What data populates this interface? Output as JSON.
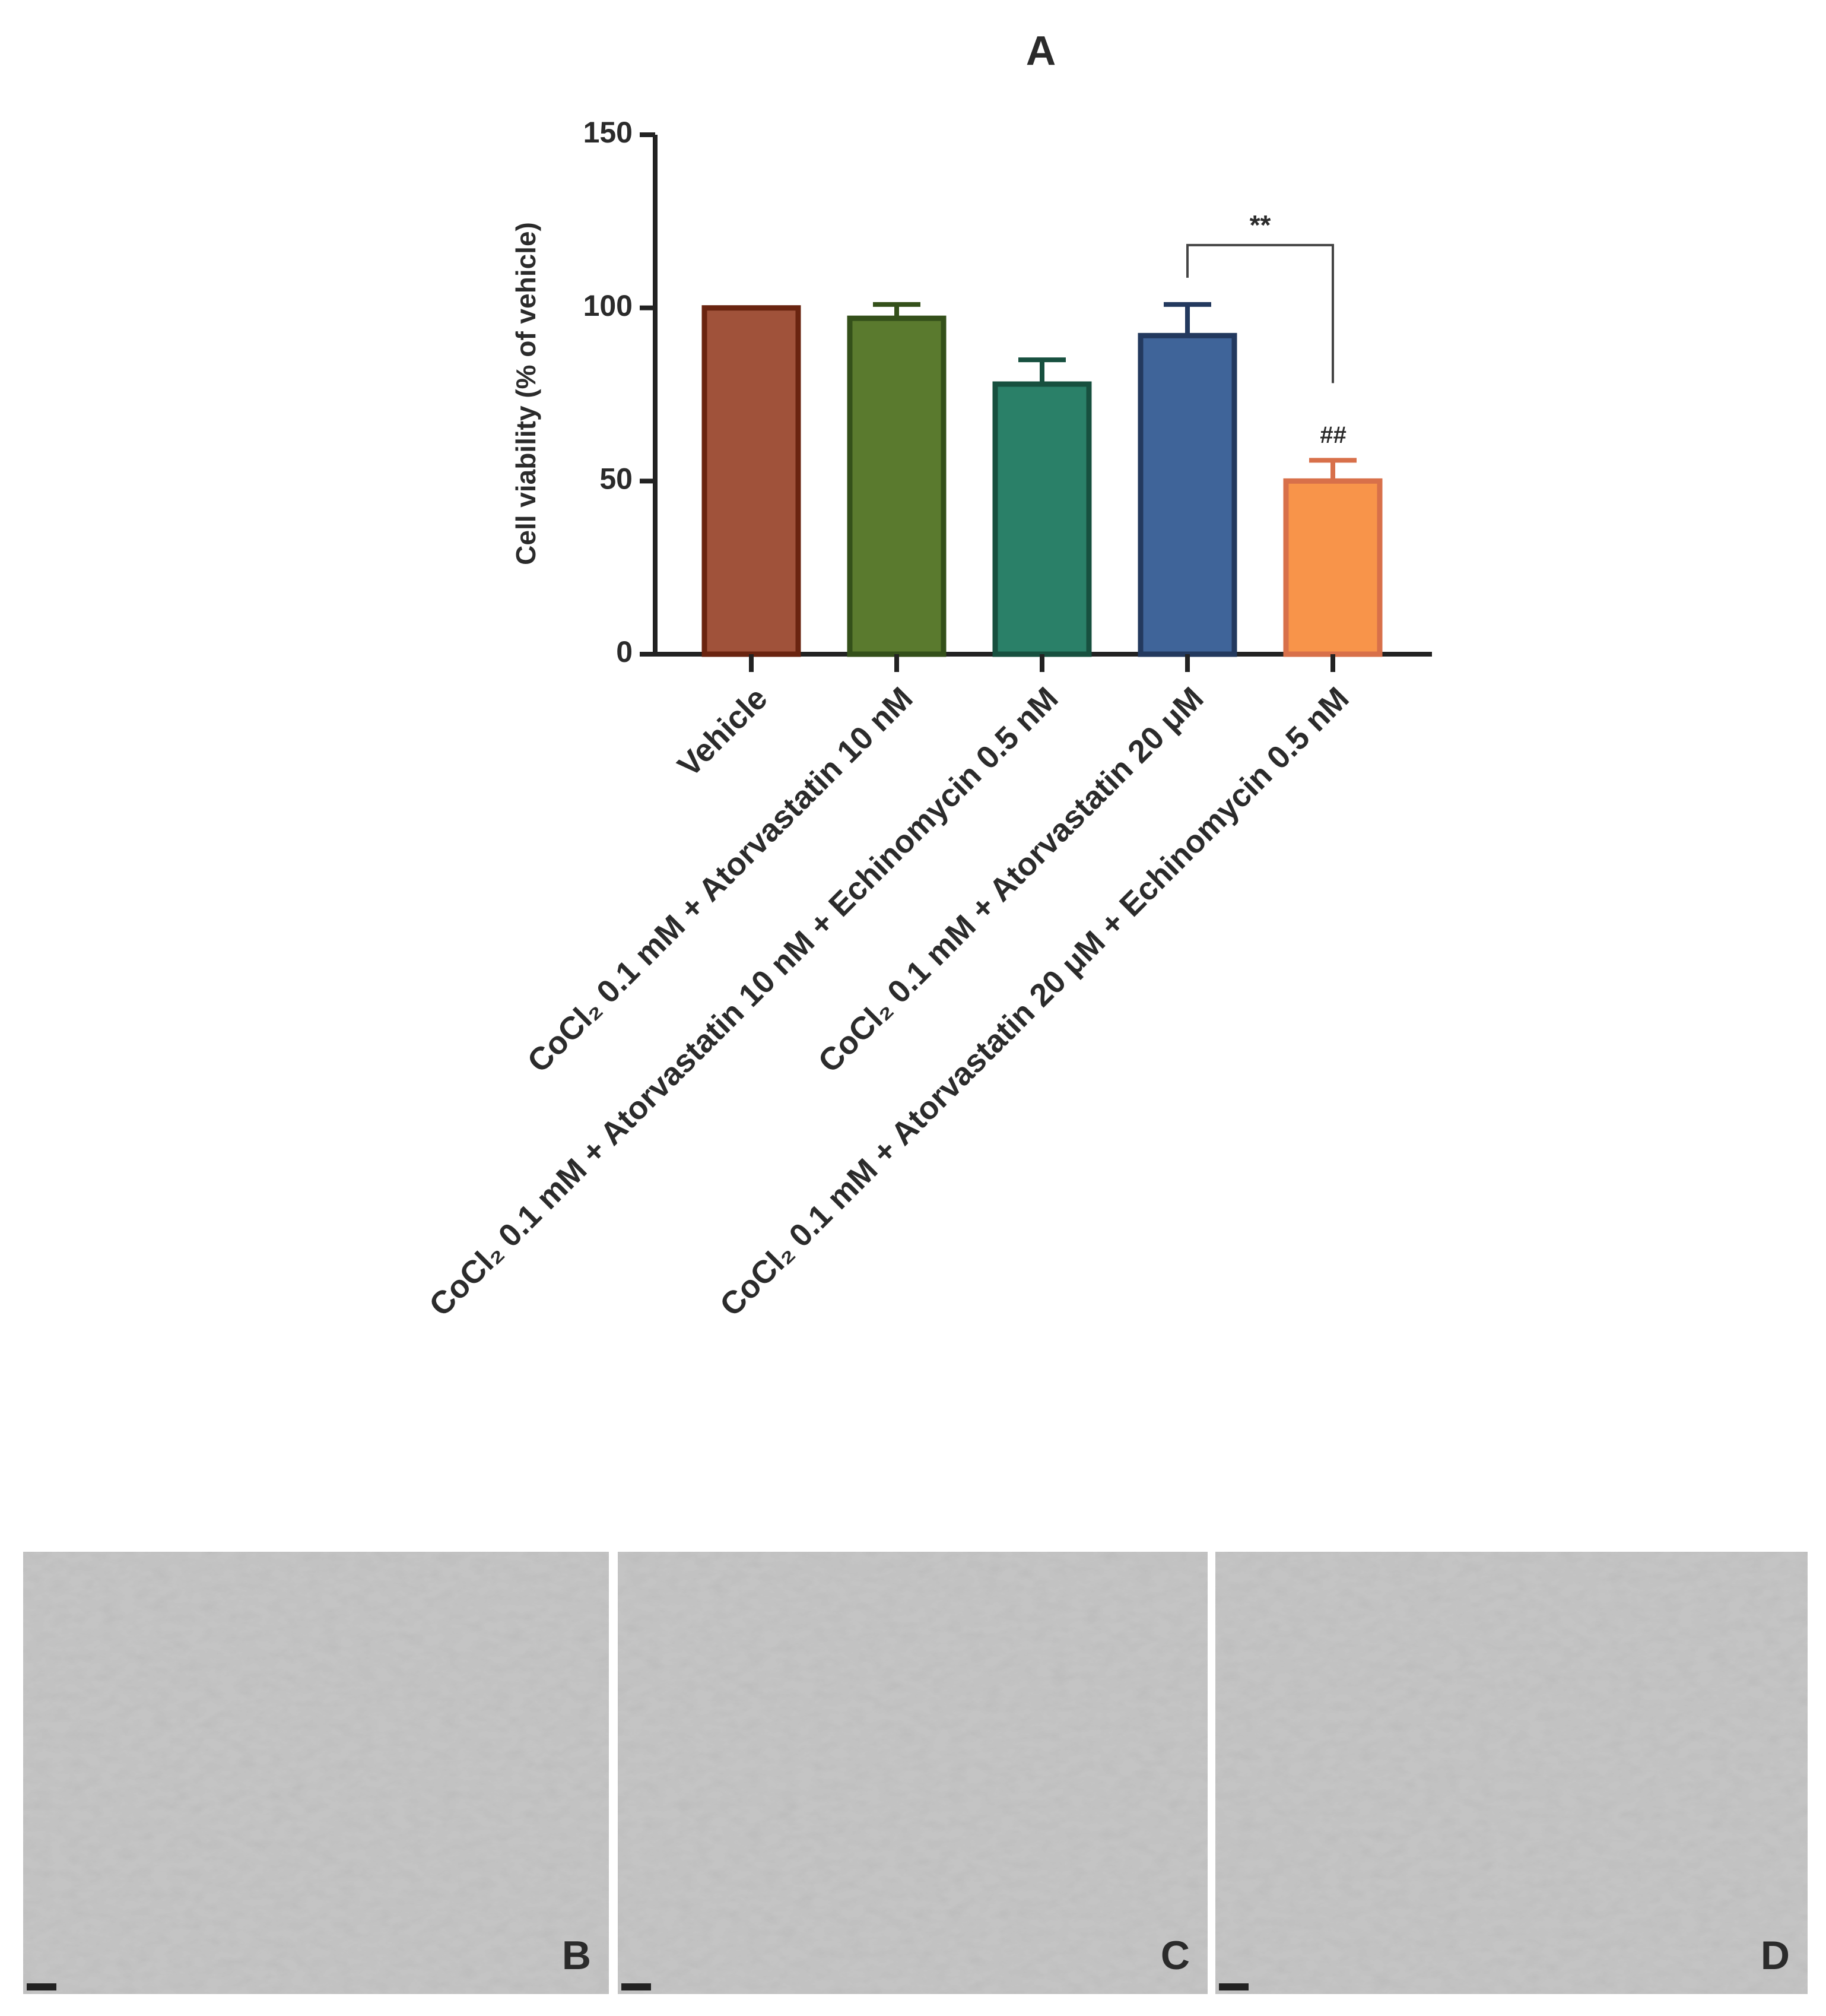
{
  "chart_data": {
    "type": "bar",
    "title": "A",
    "y_label": "Cell viability (% of vehicle)",
    "categories": [
      "Vehicle",
      "CoCl₂ 0.1 mM + Atorvastatin 10 nM",
      "CoCl₂ 0.1 mM + Atorvastatin 10 nM + Echinomycin 0.5 nM",
      "CoCl₂ 0.1 mM + Atorvastatin 20 μM",
      "CoCl₂ 0.1 mM + Atorvastatin 20 μM + Echinomycin 0.5 nM"
    ],
    "values": [
      100,
      97,
      78,
      92,
      50
    ],
    "errors": [
      0,
      4,
      7,
      9,
      6
    ],
    "colors": [
      "#a0523a",
      "#5a7a2e",
      "#2a8068",
      "#3f6499",
      "#f8944a"
    ],
    "edge_colors": [
      "#6a2410",
      "#34501a",
      "#17503f",
      "#23395e",
      "#d8704a"
    ],
    "ylim": [
      0,
      150
    ],
    "yticks": [
      0,
      50,
      100,
      150
    ],
    "annotations": [
      {
        "text": "**",
        "between": [
          3,
          4
        ]
      },
      {
        "text": "##",
        "category": 4
      }
    ]
  },
  "image_panels": [
    {
      "label": "B"
    },
    {
      "label": "C"
    },
    {
      "label": "D"
    }
  ]
}
